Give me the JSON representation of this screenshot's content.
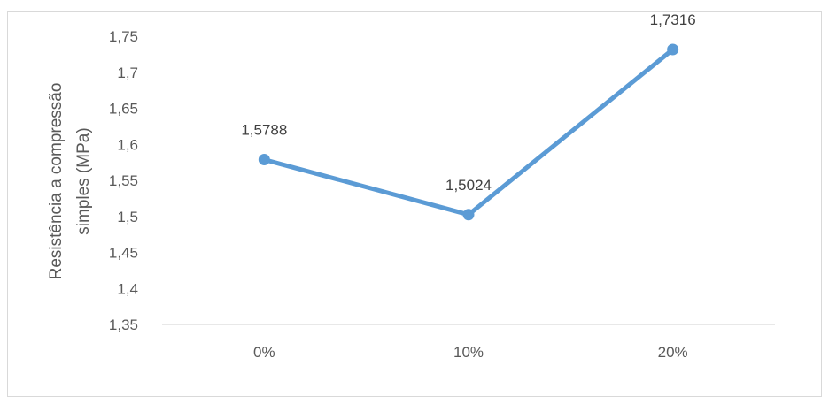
{
  "chart_data": {
    "type": "line",
    "categories": [
      "0%",
      "10%",
      "20%"
    ],
    "series": [
      {
        "values": [
          1.5788,
          1.5024,
          1.7316
        ]
      }
    ],
    "data_labels": [
      "1,5788",
      "1,5024",
      "1,7316"
    ],
    "ylabel_lines": [
      "Resistência a compressão",
      "simples (MPa)"
    ],
    "ylim": [
      1.35,
      1.75
    ],
    "yticks": [
      1.35,
      1.4,
      1.45,
      1.5,
      1.55,
      1.6,
      1.65,
      1.7,
      1.75
    ],
    "ytick_labels": [
      "1,35",
      "1,4",
      "1,45",
      "1,5",
      "1,55",
      "1,6",
      "1,65",
      "1,7",
      "1,75"
    ],
    "grid": false,
    "legend": "none",
    "colors": {
      "series": "#5b9bd5",
      "axis": "#d9d9d9",
      "text": "#595959"
    }
  }
}
